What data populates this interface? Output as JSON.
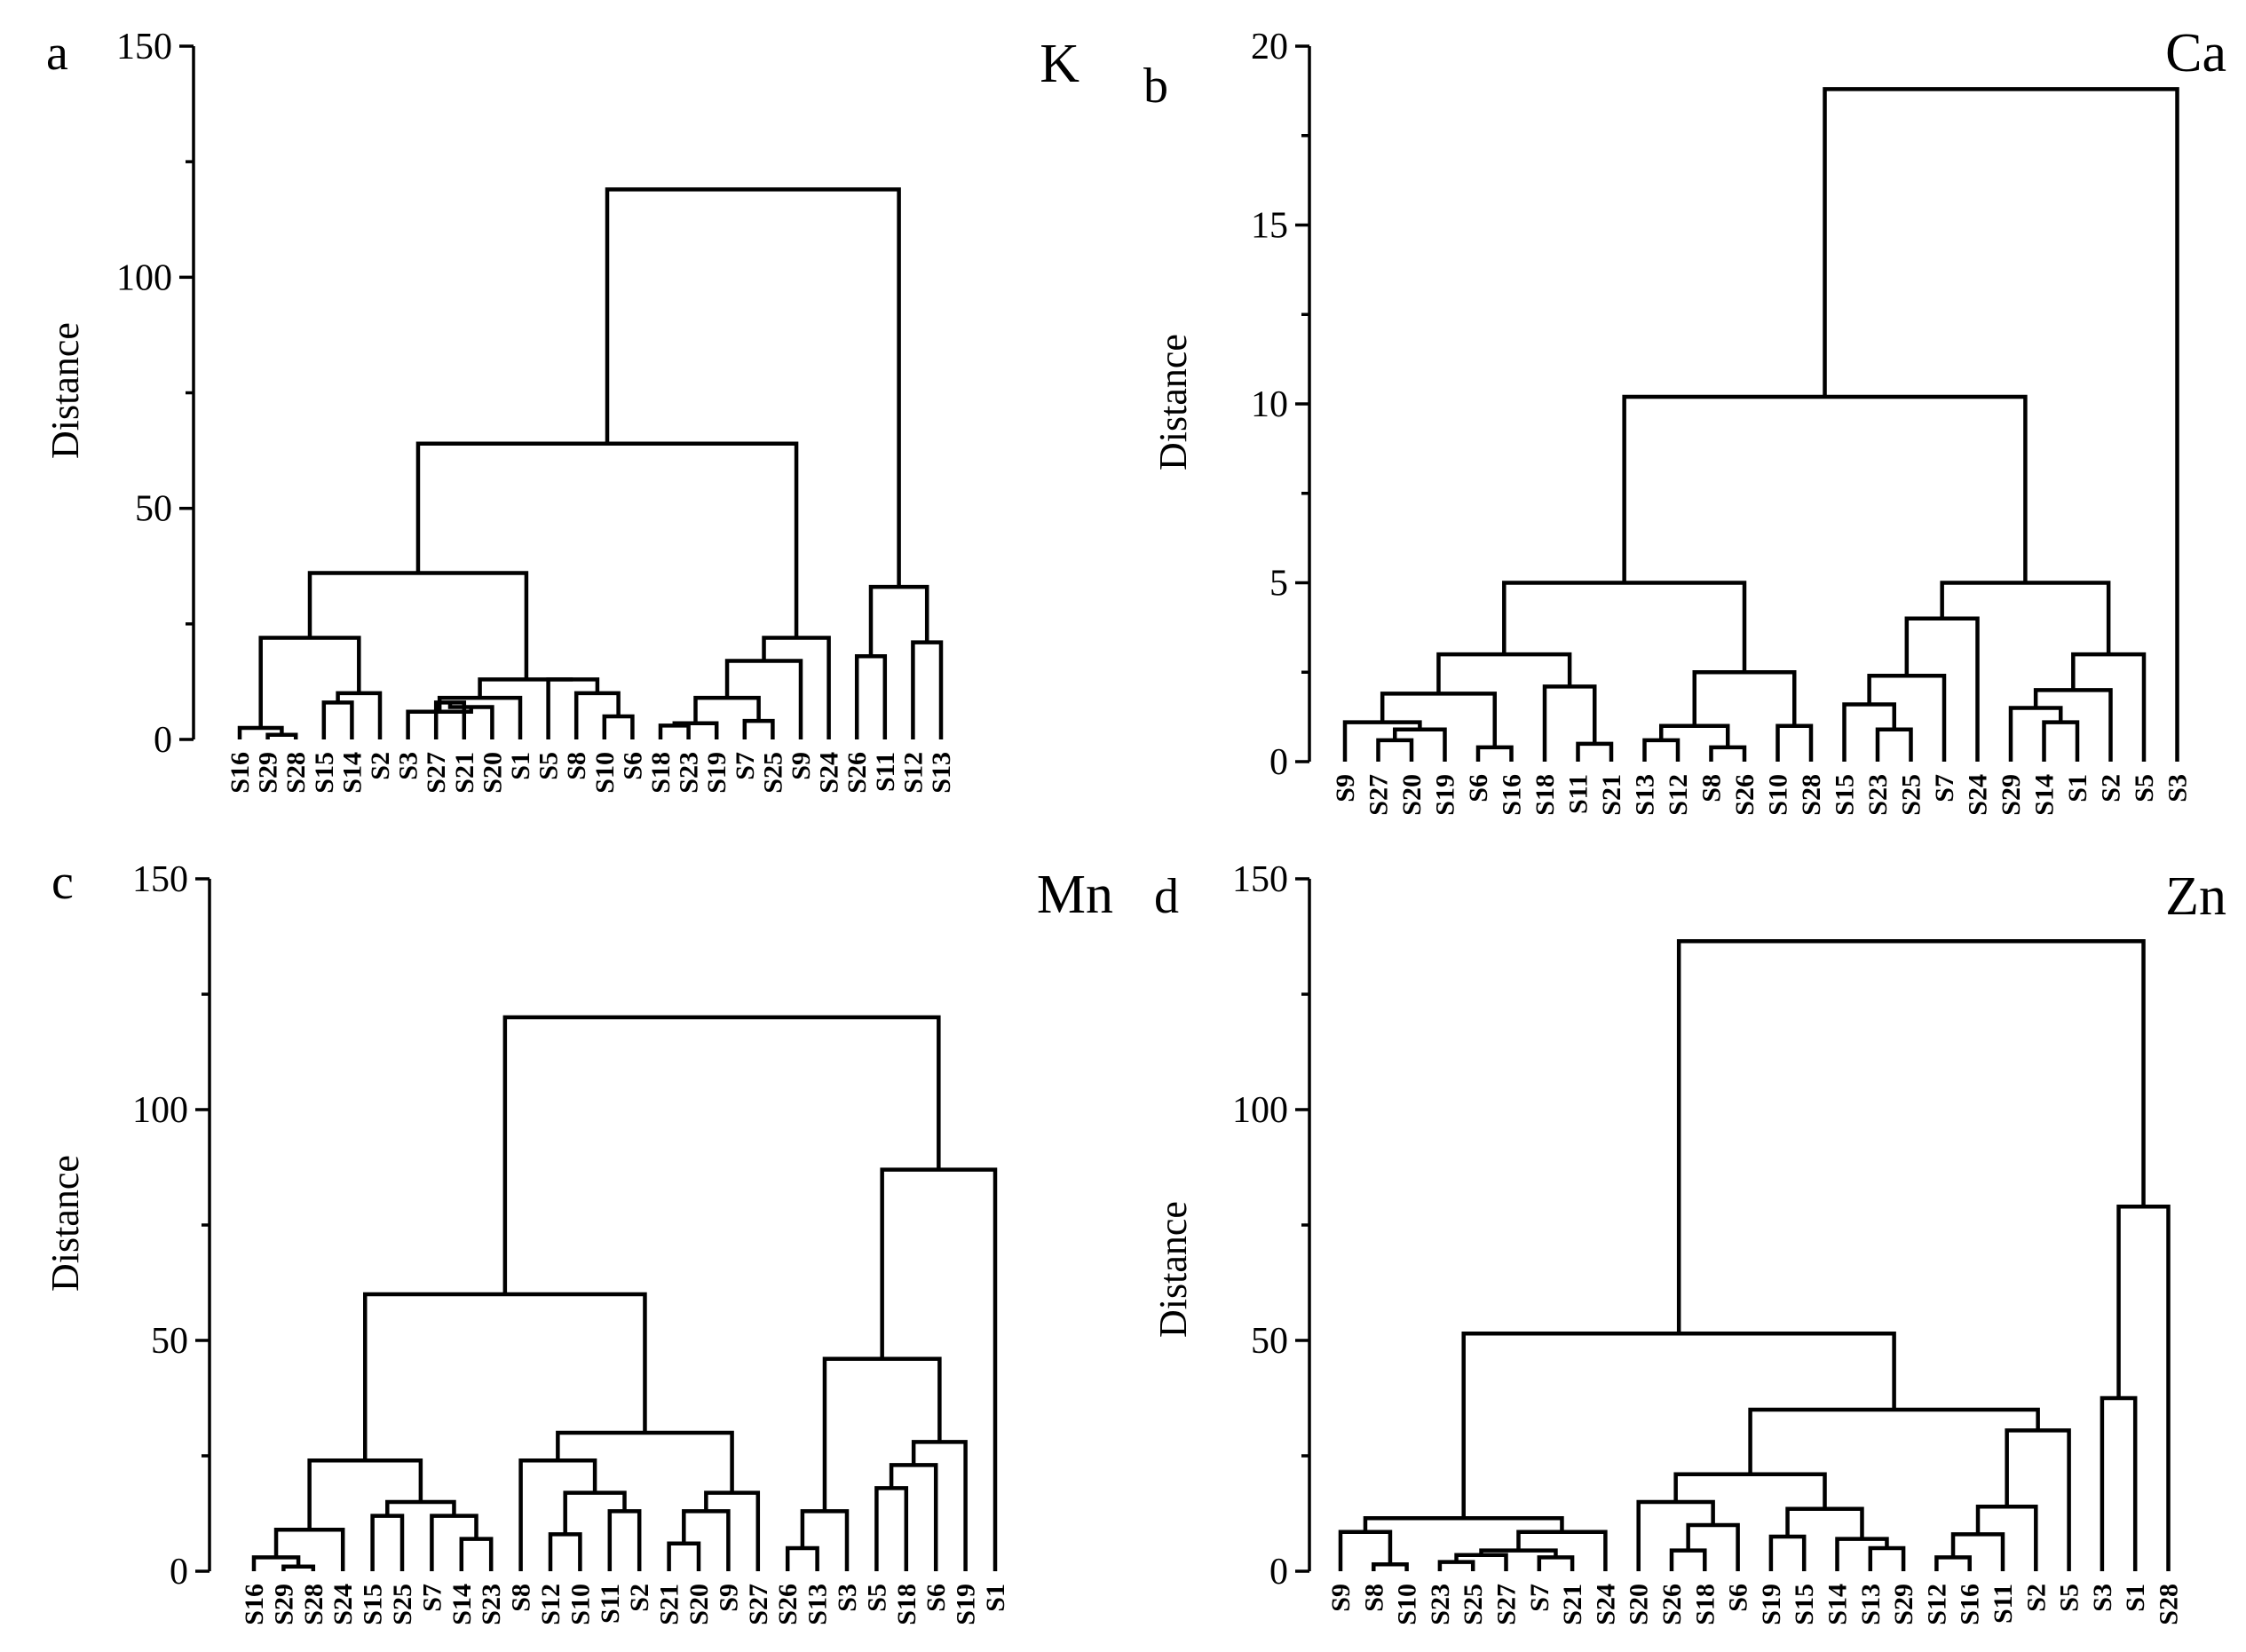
{
  "chart_data": [
    {
      "type": "dendrogram",
      "panel": "a",
      "title": "K",
      "ylabel": "Distance",
      "ylim": [
        0,
        150
      ],
      "yticks": [
        0,
        50,
        100,
        150
      ],
      "leaves": [
        "S16",
        "S29",
        "S28",
        "S15",
        "S14",
        "S2",
        "S3",
        "S27",
        "S21",
        "S20",
        "S1",
        "S5",
        "S8",
        "S10",
        "S6",
        "S18",
        "S23",
        "S19",
        "S7",
        "S25",
        "S9",
        "S24",
        "S26",
        "S11",
        "S12",
        "S13"
      ],
      "merges": [
        [
          1,
          2,
          1.0
        ],
        [
          0,
          26,
          2.5
        ],
        [
          3,
          4,
          8.0
        ],
        [
          5,
          28,
          10.0
        ],
        [
          27,
          29,
          22.0
        ],
        [
          7,
          8,
          8.0
        ],
        [
          9,
          31,
          7.0
        ],
        [
          6,
          32,
          6.0
        ],
        [
          10,
          33,
          9.0
        ],
        [
          13,
          14,
          5.0
        ],
        [
          12,
          35,
          10.0
        ],
        [
          11,
          36,
          13.0
        ],
        [
          34,
          37,
          13.0
        ],
        [
          30,
          38,
          36.0
        ],
        [
          15,
          16,
          3.0
        ],
        [
          17,
          40,
          3.5
        ],
        [
          18,
          19,
          4.0
        ],
        [
          41,
          42,
          9.0
        ],
        [
          43,
          20,
          17.0
        ],
        [
          44,
          21,
          22.0
        ],
        [
          39,
          45,
          64.0
        ],
        [
          22,
          23,
          18.0
        ],
        [
          24,
          25,
          21.0
        ],
        [
          47,
          48,
          33.0
        ],
        [
          46,
          49,
          119.0
        ]
      ]
    },
    {
      "type": "dendrogram",
      "panel": "b",
      "title": "Ca",
      "ylabel": "Distance",
      "ylim": [
        0,
        20
      ],
      "yticks": [
        0,
        5,
        10,
        15,
        20
      ],
      "leaves": [
        "S9",
        "S27",
        "S20",
        "S19",
        "S6",
        "S16",
        "S18",
        "S11",
        "S21",
        "S13",
        "S12",
        "S8",
        "S26",
        "S10",
        "S28",
        "S15",
        "S23",
        "S25",
        "S7",
        "S24",
        "S29",
        "S14",
        "S1",
        "S2",
        "S5",
        "S3"
      ],
      "merges": [
        [
          1,
          2,
          0.6
        ],
        [
          26,
          3,
          0.9
        ],
        [
          0,
          27,
          1.1
        ],
        [
          4,
          5,
          0.4
        ],
        [
          28,
          29,
          1.9
        ],
        [
          7,
          8,
          0.5
        ],
        [
          6,
          31,
          2.1
        ],
        [
          30,
          32,
          3.0
        ],
        [
          9,
          10,
          0.6
        ],
        [
          11,
          12,
          0.4
        ],
        [
          34,
          35,
          1.0
        ],
        [
          13,
          14,
          1.0
        ],
        [
          36,
          37,
          2.5
        ],
        [
          33,
          38,
          5.0
        ],
        [
          16,
          17,
          0.9
        ],
        [
          15,
          40,
          1.6
        ],
        [
          41,
          18,
          2.4
        ],
        [
          42,
          19,
          4.0
        ],
        [
          21,
          22,
          1.1
        ],
        [
          20,
          44,
          1.5
        ],
        [
          45,
          23,
          2.0
        ],
        [
          46,
          24,
          3.0
        ],
        [
          43,
          47,
          5.0
        ],
        [
          39,
          48,
          10.2
        ],
        [
          49,
          25,
          18.8
        ]
      ]
    },
    {
      "type": "dendrogram",
      "panel": "c",
      "title": "Mn",
      "ylabel": "Distance",
      "ylim": [
        0,
        150
      ],
      "yticks": [
        0,
        50,
        100,
        150
      ],
      "leaves": [
        "S16",
        "S29",
        "S28",
        "S24",
        "S15",
        "S25",
        "S7",
        "S14",
        "S23",
        "S8",
        "S12",
        "S10",
        "S11",
        "S2",
        "S21",
        "S20",
        "S9",
        "S27",
        "S26",
        "S13",
        "S3",
        "S5",
        "S18",
        "S6",
        "S19",
        "S1"
      ],
      "merges": [
        [
          1,
          2,
          1.0
        ],
        [
          0,
          26,
          3.0
        ],
        [
          27,
          3,
          9.0
        ],
        [
          4,
          5,
          12.0
        ],
        [
          7,
          8,
          7.0
        ],
        [
          6,
          30,
          12.0
        ],
        [
          29,
          31,
          15.0
        ],
        [
          28,
          32,
          24.0
        ],
        [
          10,
          11,
          8.0
        ],
        [
          12,
          13,
          13.0
        ],
        [
          34,
          35,
          17.0
        ],
        [
          9,
          36,
          24.0
        ],
        [
          14,
          15,
          6.0
        ],
        [
          38,
          16,
          13.0
        ],
        [
          39,
          17,
          17.0
        ],
        [
          37,
          40,
          30.0
        ],
        [
          33,
          41,
          60.0
        ],
        [
          18,
          19,
          5.0
        ],
        [
          43,
          20,
          13.0
        ],
        [
          21,
          22,
          18.0
        ],
        [
          45,
          23,
          23.0
        ],
        [
          46,
          24,
          28.0
        ],
        [
          44,
          47,
          46.0
        ],
        [
          48,
          25,
          87.0
        ],
        [
          42,
          49,
          120.0
        ]
      ]
    },
    {
      "type": "dendrogram",
      "panel": "d",
      "title": "Zn",
      "ylabel": "Distance",
      "ylim": [
        0,
        150
      ],
      "yticks": [
        0,
        50,
        100,
        150
      ],
      "leaves": [
        "S9",
        "S8",
        "S10",
        "S23",
        "S25",
        "S27",
        "S7",
        "S21",
        "S24",
        "S20",
        "S26",
        "S18",
        "S6",
        "S19",
        "S15",
        "S14",
        "S13",
        "S29",
        "S12",
        "S16",
        "S11",
        "S2",
        "S5",
        "S3",
        "S1",
        "S28"
      ],
      "merges": [
        [
          1,
          2,
          1.5
        ],
        [
          0,
          26,
          8.5
        ],
        [
          3,
          4,
          2.0
        ],
        [
          28,
          5,
          3.5
        ],
        [
          6,
          7,
          3.0
        ],
        [
          29,
          30,
          4.5
        ],
        [
          31,
          8,
          8.5
        ],
        [
          27,
          32,
          11.5
        ],
        [
          10,
          11,
          4.5
        ],
        [
          34,
          12,
          10.0
        ],
        [
          9,
          35,
          15.0
        ],
        [
          13,
          14,
          7.5
        ],
        [
          16,
          17,
          5.0
        ],
        [
          15,
          38,
          7.0
        ],
        [
          37,
          39,
          13.5
        ],
        [
          36,
          40,
          21.0
        ],
        [
          18,
          19,
          3.0
        ],
        [
          42,
          20,
          8.0
        ],
        [
          43,
          21,
          14.0
        ],
        [
          44,
          22,
          30.5
        ],
        [
          41,
          45,
          35.0
        ],
        [
          33,
          46,
          51.5
        ],
        [
          23,
          24,
          37.5
        ],
        [
          48,
          25,
          79.0
        ],
        [
          47,
          49,
          136.5
        ]
      ]
    }
  ]
}
